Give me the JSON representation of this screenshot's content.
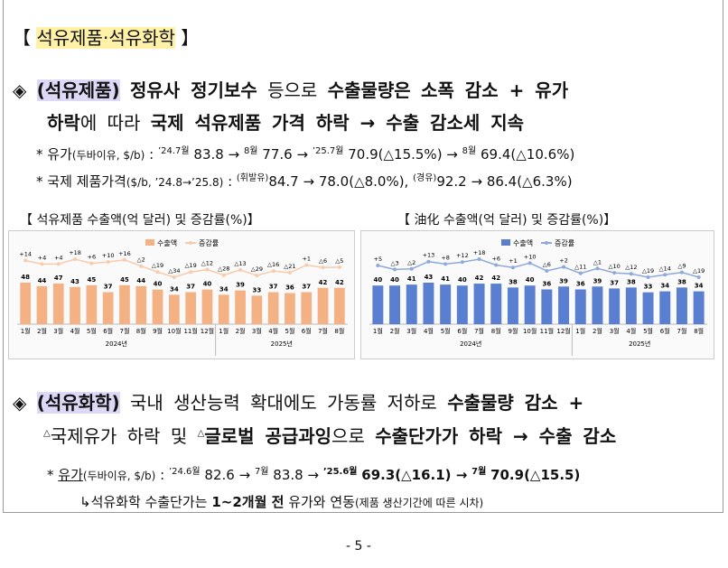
{
  "header": {
    "open": "【",
    "title": "석유제품·석유화학",
    "close": "】"
  },
  "sections": [
    {
      "marker": "◈",
      "lines": [
        [
          "(석유제품)",
          "정유사 정기보수",
          "등으로",
          "수출물량은",
          "소폭 감소 + 유가"
        ],
        [
          "하락",
          "에 따라",
          "국제 석유제품 가격 하락 → 수출 감소세 지속"
        ]
      ],
      "notes": [
        [
          "*",
          "유가",
          "(두바이유, $/b)",
          ":",
          "’24.7월",
          "83.8 →",
          "8월",
          "77.6 →",
          "’25.7월",
          "70.9(△15.5%) →",
          "8월",
          "69.4(△10.6%)"
        ],
        [
          "*",
          "국제 제품가격",
          "($/b, ’24.8→’25.8)",
          ":",
          "(휘발유)",
          "84.7 → 78.0(△8.0%),",
          "(경유)",
          "92.2 → 86.4(△6.3%)"
        ]
      ]
    },
    {
      "marker": "◈",
      "lines": [
        [
          "(석유화학)",
          "국내 생산능력 확대에도 가동률 저하로",
          "수출물량 감소 +"
        ],
        [
          "△",
          "국제유가 하락 및",
          "△",
          "글로벌 공급과잉",
          "으로",
          "수출단가가 하락 → 수출 감소"
        ]
      ],
      "notes": [
        [
          "*",
          "유가",
          "(두바이유, $/b)",
          ":",
          "’24.6월",
          "82.6 →",
          "7월",
          "83.8 →",
          "’25.6월",
          "69.3(△16.1) →",
          "7월",
          "70.9(△15.5)"
        ],
        [
          "↳석유화학 수출단가는",
          "1~2개월 전",
          "유가와 연동",
          "(제품 생산기간에 따른 시차)"
        ]
      ]
    }
  ],
  "charts": [
    {
      "title": "【 석유제품 수출액(억 달러) 및 증감률(%)】",
      "legend": [
        "수출액",
        "증감률"
      ],
      "bar_color": "#f4b183",
      "line_color": "#f8cbad",
      "categories": [
        "1월",
        "2월",
        "3월",
        "4월",
        "5월",
        "6월",
        "7월",
        "8월",
        "9월",
        "10월",
        "11월",
        "12월",
        "1월",
        "2월",
        "3월",
        "4월",
        "5월",
        "6월",
        "7월",
        "8월"
      ],
      "years": [
        "2024년",
        "2025년"
      ],
      "exports": [
        48,
        44,
        47,
        43,
        45,
        37,
        45,
        44,
        40,
        34,
        37,
        40,
        34,
        39,
        33,
        37,
        36,
        37,
        42,
        42
      ],
      "growth": [
        14,
        4,
        4,
        18,
        6,
        10,
        16,
        -2,
        -19,
        -34,
        -19,
        -12,
        -28,
        -13,
        -29,
        -16,
        -21,
        1,
        -6,
        -5
      ],
      "growth_labels": [
        "+14",
        "+4",
        "+4",
        "+18",
        "+6",
        "+10",
        "+16",
        "△2",
        "△19",
        "△34",
        "△19",
        "△12",
        "△28",
        "△13",
        "△29",
        "△16",
        "△21",
        "+1",
        "△6",
        "△5"
      ]
    },
    {
      "title": "【 油化 수출액(억 달러) 및 증감률(%)】",
      "legend": [
        "수출액",
        "증감률"
      ],
      "bar_color": "#5b7fd0",
      "line_color": "#8ea9db",
      "categories": [
        "1월",
        "2월",
        "3월",
        "4월",
        "5월",
        "6월",
        "7월",
        "8월",
        "9월",
        "10월",
        "11월",
        "12월",
        "1월",
        "2월",
        "3월",
        "4월",
        "5월",
        "6월",
        "7월",
        "8월"
      ],
      "years": [
        "2024년",
        "2025년"
      ],
      "exports": [
        40,
        40,
        41,
        43,
        41,
        40,
        42,
        42,
        38,
        40,
        36,
        39,
        36,
        39,
        37,
        38,
        33,
        34,
        38,
        34
      ],
      "growth": [
        5,
        -3,
        -2,
        13,
        8,
        12,
        18,
        6,
        1,
        10,
        -6,
        2,
        -11,
        -1,
        -10,
        -12,
        -19,
        -14,
        -9,
        -19
      ],
      "growth_labels": [
        "+5",
        "△3",
        "△2",
        "+13",
        "+8",
        "+12",
        "+18",
        "+6",
        "+1",
        "+10",
        "△6",
        "+2",
        "△11",
        "△1",
        "△10",
        "△12",
        "△19",
        "△14",
        "△9",
        "△19"
      ]
    }
  ],
  "footer": "- 5 -"
}
